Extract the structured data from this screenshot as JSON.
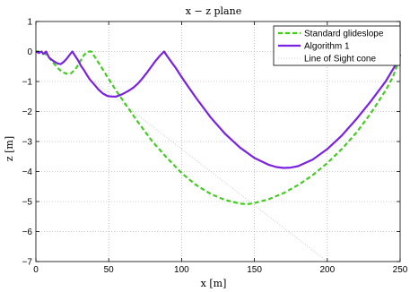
{
  "chart_data": {
    "type": "line",
    "title": "x − z plane",
    "xlabel": "x [m]",
    "ylabel": "z [m]",
    "xlim": [
      0,
      250
    ],
    "ylim": [
      -7,
      1
    ],
    "xticks": [
      "0",
      "50",
      "100",
      "150",
      "200",
      "250"
    ],
    "yticks": [
      "1",
      "0",
      "−1",
      "−2",
      "−3",
      "−4",
      "−5",
      "−6",
      "−7"
    ],
    "grid": true,
    "legend_position": "top-right",
    "colors": {
      "glideslope": "#44cc22",
      "algorithm": "#7a22e0",
      "los": "#c8c8c8"
    },
    "series": [
      {
        "name": "Standard glideslope",
        "style": "dashed",
        "x": [
          0,
          2,
          3,
          5,
          7,
          9,
          12,
          15,
          18,
          21,
          24,
          27,
          29,
          31,
          33,
          35,
          37,
          38,
          40,
          42,
          44,
          47,
          50,
          55,
          60,
          70,
          80,
          90,
          100,
          110,
          120,
          130,
          140,
          145,
          150,
          160,
          170,
          180,
          190,
          200,
          210,
          220,
          230,
          240,
          245,
          248,
          250
        ],
        "y": [
          0,
          0.0,
          -0.02,
          -0.05,
          -0.1,
          -0.2,
          -0.38,
          -0.55,
          -0.68,
          -0.74,
          -0.73,
          -0.6,
          -0.45,
          -0.28,
          -0.12,
          -0.02,
          0.0,
          0.0,
          -0.15,
          -0.3,
          -0.45,
          -0.68,
          -0.92,
          -1.3,
          -1.65,
          -2.35,
          -3.0,
          -3.55,
          -4.05,
          -4.45,
          -4.75,
          -4.95,
          -5.07,
          -5.09,
          -5.05,
          -4.92,
          -4.72,
          -4.45,
          -4.12,
          -3.72,
          -3.25,
          -2.7,
          -2.05,
          -1.3,
          -0.85,
          -0.45,
          -0.1
        ]
      },
      {
        "name": "Algorithm 1",
        "style": "solid",
        "x": [
          0,
          1,
          2,
          3,
          4,
          5,
          6,
          7,
          8,
          9,
          11,
          13,
          15,
          17,
          19,
          21,
          23,
          25,
          27,
          29,
          31,
          33,
          35,
          37,
          40,
          43,
          46,
          49,
          52,
          55,
          58,
          61,
          64,
          67,
          70,
          73,
          76,
          79,
          82,
          85,
          88,
          90,
          93,
          96,
          100,
          105,
          110,
          120,
          130,
          140,
          150,
          160,
          165,
          170,
          175,
          180,
          190,
          200,
          210,
          220,
          230,
          240,
          245,
          248,
          250
        ],
        "y": [
          0,
          -0.02,
          -0.05,
          -0.02,
          0.0,
          -0.08,
          -0.05,
          0.0,
          -0.1,
          -0.2,
          -0.28,
          -0.35,
          -0.4,
          -0.42,
          -0.35,
          -0.25,
          -0.12,
          0.0,
          -0.15,
          -0.3,
          -0.48,
          -0.62,
          -0.78,
          -0.93,
          -1.1,
          -1.27,
          -1.4,
          -1.48,
          -1.5,
          -1.5,
          -1.45,
          -1.38,
          -1.3,
          -1.2,
          -1.07,
          -0.9,
          -0.72,
          -0.52,
          -0.32,
          -0.15,
          0.0,
          -0.15,
          -0.35,
          -0.55,
          -0.85,
          -1.2,
          -1.55,
          -2.2,
          -2.75,
          -3.2,
          -3.55,
          -3.78,
          -3.85,
          -3.88,
          -3.87,
          -3.82,
          -3.6,
          -3.25,
          -2.8,
          -2.25,
          -1.65,
          -1.0,
          -0.6,
          -0.35,
          -0.1
        ]
      },
      {
        "name": "Line of Sight cone",
        "style": "dotted",
        "x": [
          40,
          200
        ],
        "y": [
          -1.0,
          -7.0
        ]
      }
    ]
  }
}
